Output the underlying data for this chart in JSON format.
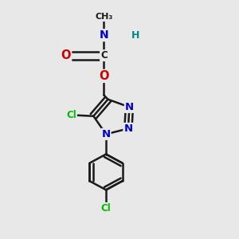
{
  "bg_color": "#e8e8e8",
  "bond_color": "#1a1a1a",
  "bond_width": 1.8,
  "label_colors": {
    "N": "#0000cc",
    "O": "#cc0000",
    "Cl": "#00bb00",
    "C": "#1a1a1a",
    "H": "#008888"
  },
  "figsize": [
    3.0,
    3.0
  ],
  "dpi": 100,
  "xlim": [
    0.05,
    0.95
  ],
  "ylim": [
    0.02,
    0.98
  ]
}
